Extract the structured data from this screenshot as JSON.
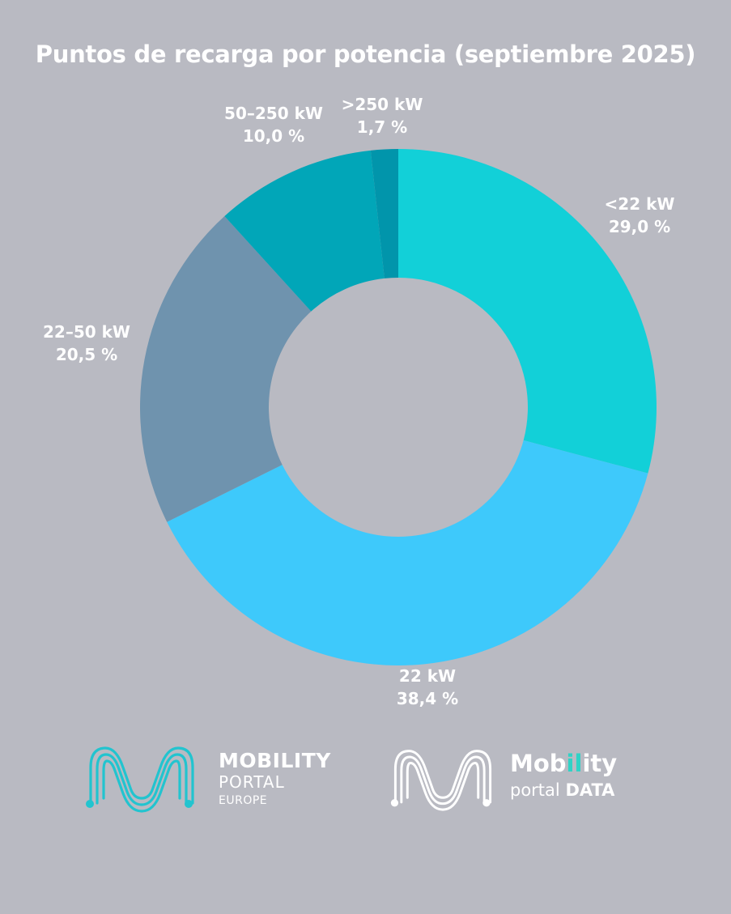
{
  "chart_data": {
    "type": "pie",
    "title": "Puntos de recarga por potencia (septiembre 2025)",
    "donut": true,
    "slices": [
      {
        "label": "<22 kW",
        "value": 29.0,
        "value_label": "29,0 %",
        "color": "#12d0d8"
      },
      {
        "label": "22 kW",
        "value": 38.4,
        "value_label": "38,4 %",
        "color": "#3ec9fb"
      },
      {
        "label": "22–50 kW",
        "value": 20.5,
        "value_label": "20,5 %",
        "color": "#6f93ae"
      },
      {
        "label": "50–250 kW",
        "value": 10.0,
        "value_label": "10,0 %",
        "color": "#01a6b8"
      },
      {
        "label": ">250 kW",
        "value": 1.7,
        "value_label": "1,7 %",
        "color": "#0195ab"
      }
    ]
  },
  "logos": {
    "mobility_portal_europe": {
      "line1": "MOBILITY",
      "line2": "PORTAL",
      "line3": "EUROPE",
      "icon": "m-wave-logo-icon",
      "color": "#22c4cf"
    },
    "mobility_portal_data": {
      "word_part1": "Mob",
      "word_highlight": "il",
      "word_part2": "ity",
      "sub_part1": "portal ",
      "sub_part2": "DATA",
      "icon": "m-wave-logo-icon",
      "color": "#ffffff",
      "highlight_color": "#2fd3c6"
    }
  }
}
